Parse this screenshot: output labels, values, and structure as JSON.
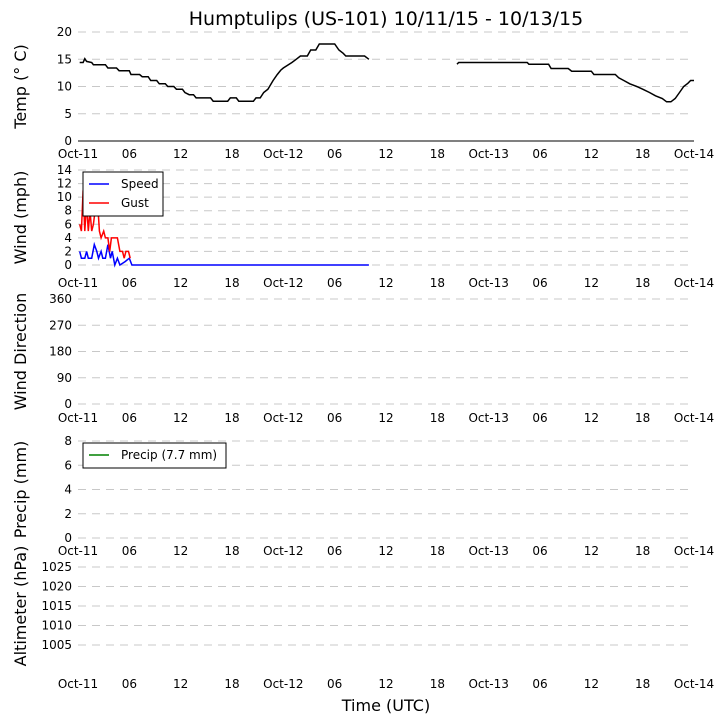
{
  "title": "Humptulips (US-101) 10/11/15 - 10/13/15",
  "xlabel": "Time (UTC)",
  "x_ticks": {
    "hours": [
      0,
      6,
      12,
      18,
      24,
      30,
      36,
      42,
      48,
      54,
      60,
      66,
      72
    ],
    "labels": [
      "Oct-11",
      "06",
      "12",
      "18",
      "Oct-12",
      "06",
      "12",
      "18",
      "Oct-13",
      "06",
      "12",
      "18",
      "Oct-14"
    ]
  },
  "x_range_hours": [
    0,
    72
  ],
  "chart_data": [
    {
      "type": "line",
      "id": "temp",
      "ylabel": "Temp ($^\\circ$C)",
      "ylabel_display": "Temp (° C)",
      "ylim": [
        0,
        20
      ],
      "yticks": [
        0,
        5,
        10,
        15,
        20
      ],
      "grid": true,
      "series": [
        {
          "name": "Temp",
          "color": "#000000",
          "segments": [
            [
              [
                0.2,
                14.4
              ],
              [
                0.6,
                14.4
              ],
              [
                0.8,
                15.1
              ],
              [
                1.0,
                14.6
              ],
              [
                1.6,
                14.4
              ],
              [
                1.8,
                14.0
              ],
              [
                3.2,
                14.0
              ],
              [
                3.5,
                13.4
              ],
              [
                4.5,
                13.4
              ],
              [
                4.8,
                12.9
              ],
              [
                6.0,
                12.9
              ],
              [
                6.2,
                12.2
              ],
              [
                7.2,
                12.2
              ],
              [
                7.5,
                11.8
              ],
              [
                8.2,
                11.8
              ],
              [
                8.5,
                11.1
              ],
              [
                9.2,
                11.1
              ],
              [
                9.5,
                10.5
              ],
              [
                10.2,
                10.5
              ],
              [
                10.5,
                10.0
              ],
              [
                11.2,
                10.0
              ],
              [
                11.5,
                9.5
              ],
              [
                12.2,
                9.5
              ],
              [
                12.5,
                8.9
              ],
              [
                13.0,
                8.5
              ],
              [
                13.5,
                8.5
              ],
              [
                13.8,
                7.9
              ],
              [
                15.5,
                7.9
              ],
              [
                15.8,
                7.3
              ],
              [
                17.5,
                7.3
              ],
              [
                17.8,
                7.9
              ],
              [
                18.5,
                7.9
              ],
              [
                18.8,
                7.3
              ],
              [
                20.5,
                7.3
              ],
              [
                20.8,
                7.9
              ],
              [
                21.3,
                7.9
              ],
              [
                21.7,
                8.9
              ],
              [
                22.2,
                9.5
              ],
              [
                22.8,
                11.1
              ],
              [
                23.3,
                12.2
              ],
              [
                23.7,
                13.0
              ],
              [
                24.0,
                13.4
              ],
              [
                24.5,
                13.9
              ],
              [
                25.0,
                14.4
              ],
              [
                25.5,
                15.0
              ],
              [
                26.0,
                15.6
              ],
              [
                26.8,
                15.6
              ],
              [
                27.2,
                16.7
              ],
              [
                27.8,
                16.7
              ],
              [
                28.2,
                17.8
              ],
              [
                30.0,
                17.8
              ],
              [
                30.5,
                16.7
              ],
              [
                31.0,
                16.1
              ],
              [
                31.3,
                15.6
              ],
              [
                33.5,
                15.6
              ],
              [
                34.0,
                15.0
              ]
            ],
            [
              [
                44.3,
                14.1
              ],
              [
                44.5,
                14.4
              ],
              [
                52.5,
                14.4
              ],
              [
                52.7,
                14.1
              ],
              [
                55.0,
                14.1
              ],
              [
                55.3,
                13.3
              ],
              [
                57.3,
                13.3
              ],
              [
                57.7,
                12.8
              ],
              [
                60.0,
                12.8
              ],
              [
                60.3,
                12.2
              ],
              [
                62.8,
                12.2
              ],
              [
                63.2,
                11.6
              ],
              [
                63.8,
                11.1
              ],
              [
                64.5,
                10.5
              ],
              [
                65.3,
                10.0
              ],
              [
                66.0,
                9.5
              ],
              [
                66.8,
                8.9
              ],
              [
                67.5,
                8.3
              ],
              [
                68.3,
                7.8
              ],
              [
                68.8,
                7.2
              ],
              [
                69.3,
                7.2
              ],
              [
                69.8,
                7.8
              ],
              [
                70.3,
                8.9
              ],
              [
                70.8,
                10.0
              ],
              [
                71.3,
                10.6
              ],
              [
                71.6,
                11.1
              ],
              [
                72.0,
                11.1
              ]
            ]
          ]
        }
      ]
    },
    {
      "type": "line",
      "id": "wind",
      "ylabel": "Wind (mph)",
      "ylim": [
        0,
        14
      ],
      "yticks": [
        0,
        2,
        4,
        6,
        8,
        10,
        12,
        14
      ],
      "grid": true,
      "legend": {
        "placement": "top-left",
        "entries": [
          "Speed",
          "Gust"
        ]
      },
      "series": [
        {
          "name": "Speed",
          "color": "#0000ff",
          "segments": [
            [
              [
                0.2,
                2
              ],
              [
                0.4,
                1
              ],
              [
                0.8,
                1
              ],
              [
                1.0,
                2
              ],
              [
                1.2,
                1
              ],
              [
                1.6,
                1
              ],
              [
                1.9,
                3
              ],
              [
                2.2,
                2
              ],
              [
                2.4,
                1
              ],
              [
                2.7,
                2
              ],
              [
                2.9,
                1
              ],
              [
                3.2,
                1
              ],
              [
                3.5,
                3
              ],
              [
                3.8,
                1
              ],
              [
                4.0,
                2
              ],
              [
                4.3,
                0
              ],
              [
                4.6,
                1
              ],
              [
                4.9,
                0
              ],
              [
                5.5,
                0.5
              ],
              [
                6.0,
                1
              ],
              [
                6.3,
                0
              ],
              [
                34.0,
                0
              ]
            ],
            [
              [
                33.8,
                0
              ]
            ],
            [
              [
                33.5,
                0
              ]
            ]
          ]
        },
        {
          "name": "Gust",
          "color": "#ff0000",
          "segments": [
            [
              [
                0.2,
                6
              ],
              [
                0.4,
                5
              ],
              [
                0.6,
                11
              ],
              [
                0.8,
                5
              ],
              [
                1.0,
                9
              ],
              [
                1.2,
                5
              ],
              [
                1.4,
                8
              ],
              [
                1.6,
                5
              ],
              [
                1.8,
                6
              ],
              [
                2.0,
                8
              ],
              [
                2.3,
                9
              ],
              [
                2.5,
                5
              ],
              [
                2.7,
                4
              ],
              [
                3.0,
                5
              ],
              [
                3.2,
                4
              ],
              [
                3.5,
                4
              ],
              [
                3.7,
                2
              ],
              [
                3.9,
                4
              ],
              [
                4.3,
                4
              ],
              [
                4.6,
                4
              ],
              [
                4.9,
                2
              ],
              [
                5.2,
                2
              ],
              [
                5.4,
                1
              ],
              [
                5.6,
                2
              ],
              [
                5.9,
                2
              ],
              [
                6.1,
                1
              ]
            ]
          ]
        }
      ]
    },
    {
      "type": "scatter",
      "id": "wind_dir",
      "ylabel": "Wind Direction",
      "ylim": [
        0,
        360
      ],
      "yticks": [
        0,
        90,
        180,
        270,
        360
      ],
      "grid": true,
      "series": [
        {
          "name": "Direction",
          "color": "#ffa500",
          "segments": []
        }
      ]
    },
    {
      "type": "line",
      "id": "precip",
      "ylabel": "Precip (mm)",
      "ylim": [
        -0.5,
        9
      ],
      "yticks": [
        0,
        2,
        4,
        6,
        8
      ],
      "grid": true,
      "legend": {
        "placement": "top-left",
        "entries": [
          "Precip (7.7 mm)"
        ]
      },
      "series": [
        {
          "name": "Precip (7.7 mm)",
          "color": "#008000",
          "segments": []
        }
      ]
    },
    {
      "type": "line",
      "id": "altimeter",
      "ylabel": "Altimeter (hPa)",
      "ylim": [
        1002,
        1026
      ],
      "yticks": [
        1005,
        1010,
        1015,
        1020,
        1025
      ],
      "grid": true,
      "series": [
        {
          "name": "Altimeter",
          "color": "#cc0000",
          "segments": []
        }
      ]
    }
  ]
}
